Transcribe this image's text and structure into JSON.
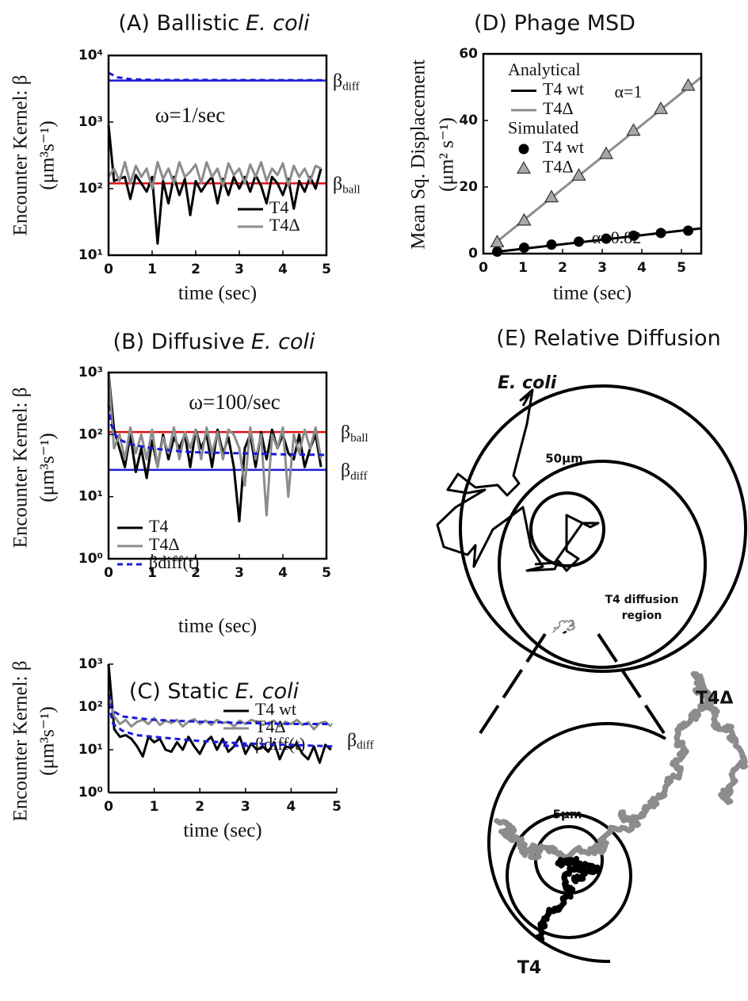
{
  "chart_data": [
    {
      "type": "line",
      "title": [
        "(A) Ballistic",
        "E. coli"
      ],
      "xlabel": "time (sec)",
      "ylabel": [
        "Encounter Kernel: β",
        "(μm³s⁻¹)"
      ],
      "log_y": true,
      "xlim": [
        0,
        5
      ],
      "xticks": [
        0,
        1,
        2,
        3,
        4,
        5
      ],
      "ylim": [
        10,
        10000
      ],
      "yticks": [
        {
          "value": 10,
          "label": "10¹"
        },
        {
          "value": 100,
          "label": "10²"
        },
        {
          "value": 1000,
          "label": "10³"
        },
        {
          "value": 10000,
          "label": "10⁴"
        }
      ],
      "annotations": [
        "ω=1/sec"
      ],
      "x": [
        0,
        0.125,
        0.25,
        0.375,
        0.5,
        0.625,
        0.75,
        0.875,
        1,
        1.125,
        1.25,
        1.375,
        1.5,
        1.625,
        1.75,
        1.875,
        2,
        2.125,
        2.25,
        2.375,
        2.5,
        2.625,
        2.75,
        2.875,
        3,
        3.125,
        3.25,
        3.375,
        3.5,
        3.625,
        3.75,
        3.875,
        4,
        4.125,
        4.25,
        4.375,
        4.5,
        4.625,
        4.75,
        4.875
      ],
      "series": [
        {
          "name": "T4",
          "color": "#000000",
          "values": [
            900,
            130,
            140,
            150,
            70,
            160,
            120,
            90,
            150,
            15,
            130,
            60,
            150,
            80,
            140,
            40,
            130,
            90,
            120,
            150,
            60,
            140,
            80,
            150,
            100,
            150,
            90,
            160,
            110,
            60,
            150,
            120,
            80,
            140,
            50,
            130,
            90,
            150,
            100,
            200
          ]
        },
        {
          "name": "T4Δ",
          "color": "#8c8c8c",
          "values": [
            150,
            200,
            130,
            250,
            120,
            220,
            150,
            200,
            100,
            250,
            140,
            200,
            120,
            250,
            150,
            180,
            230,
            120,
            250,
            150,
            200,
            110,
            240,
            160,
            200,
            120,
            230,
            150,
            250,
            130,
            200,
            160,
            240,
            110,
            220,
            150,
            200,
            130,
            220,
            200
          ]
        },
        {
          "color": "#1a1adc",
          "dash": true,
          "x": [
            0,
            0.2,
            0.5,
            1,
            5
          ],
          "values": [
            5500,
            4700,
            4400,
            4300,
            4250
          ]
        }
      ],
      "ref_lines": [
        {
          "value": 4200,
          "color": "#1a1adc",
          "label": "β",
          "sub": "diff"
        },
        {
          "value": 120,
          "color": "#e01010",
          "label": "β",
          "sub": "ball"
        }
      ]
    },
    {
      "type": "line",
      "title": [
        "(B) Diffusive",
        "E. coli"
      ],
      "xlabel": "time (sec)",
      "ylabel": [
        "Encounter Kernel: β",
        "(μm³s⁻¹)"
      ],
      "log_y": true,
      "xlim": [
        0,
        5
      ],
      "xticks": [
        0,
        1,
        2,
        3,
        4,
        5
      ],
      "ylim": [
        1,
        1000
      ],
      "yticks": [
        {
          "value": 1,
          "label": "10⁰"
        },
        {
          "value": 10,
          "label": "10¹"
        },
        {
          "value": 100,
          "label": "10²"
        },
        {
          "value": 1000,
          "label": "10³"
        }
      ],
      "annotations": [
        "ω=100/sec"
      ],
      "x": [
        0,
        0.125,
        0.25,
        0.375,
        0.5,
        0.625,
        0.75,
        0.875,
        1,
        1.125,
        1.25,
        1.375,
        1.5,
        1.625,
        1.75,
        1.875,
        2,
        2.125,
        2.25,
        2.375,
        2.5,
        2.625,
        2.75,
        2.875,
        3,
        3.125,
        3.25,
        3.375,
        3.5,
        3.625,
        3.75,
        3.875,
        4,
        4.125,
        4.25,
        4.375,
        4.5,
        4.625,
        4.75,
        4.875
      ],
      "series": [
        {
          "name": "T4",
          "color": "#000000",
          "values": [
            1000,
            120,
            60,
            30,
            100,
            25,
            60,
            20,
            80,
            30,
            100,
            40,
            90,
            60,
            100,
            30,
            120,
            60,
            100,
            30,
            120,
            50,
            90,
            30,
            4,
            60,
            100,
            30,
            110,
            40,
            120,
            60,
            100,
            50,
            40,
            100,
            30,
            60,
            100,
            30
          ]
        },
        {
          "name": "T4Δ",
          "color": "#8c8c8c",
          "values": [
            1000,
            60,
            100,
            40,
            130,
            50,
            100,
            40,
            120,
            30,
            90,
            50,
            130,
            40,
            110,
            60,
            120,
            40,
            130,
            50,
            110,
            40,
            120,
            100,
            60,
            15,
            130,
            40,
            100,
            5,
            100,
            60,
            130,
            10,
            100,
            50,
            120,
            60,
            130,
            40
          ]
        },
        {
          "name": "βdiff(t)",
          "color": "#1a1adc",
          "dash": true,
          "x": [
            0,
            0.05,
            0.15,
            0.3,
            0.5,
            1,
            1.5,
            2,
            3,
            4,
            5
          ],
          "values": [
            300,
            150,
            100,
            80,
            70,
            60,
            55,
            52,
            50,
            48,
            47
          ]
        }
      ],
      "ref_lines": [
        {
          "value": 110,
          "color": "#e01010",
          "label": "β",
          "sub": "ball"
        },
        {
          "value": 27,
          "color": "#1a1adc",
          "label": "β",
          "sub": "diff"
        }
      ]
    },
    {
      "type": "line",
      "title": [
        "(C) Static",
        "E. coli"
      ],
      "xlabel": "time (sec)",
      "ylabel": [
        "Encounter Kernel: β",
        "(μm³s⁻¹)"
      ],
      "log_y": true,
      "xlim": [
        0,
        5
      ],
      "xticks": [
        0,
        1,
        2,
        3,
        4,
        5
      ],
      "ylim": [
        1,
        1000
      ],
      "yticks": [
        {
          "value": 1,
          "label": "10⁰"
        },
        {
          "value": 10,
          "label": "10¹"
        },
        {
          "value": 100,
          "label": "10²"
        },
        {
          "value": 1000,
          "label": "10³"
        }
      ],
      "x": [
        0,
        0.125,
        0.25,
        0.375,
        0.5,
        0.625,
        0.75,
        0.875,
        1,
        1.125,
        1.25,
        1.375,
        1.5,
        1.625,
        1.75,
        1.875,
        2,
        2.125,
        2.25,
        2.375,
        2.5,
        2.625,
        2.75,
        2.875,
        3,
        3.125,
        3.25,
        3.375,
        3.5,
        3.625,
        3.75,
        3.875,
        4,
        4.125,
        4.25,
        4.375,
        4.5,
        4.625,
        4.75,
        4.875
      ],
      "series": [
        {
          "name": "T4 wt",
          "color": "#000000",
          "values": [
            1000,
            30,
            20,
            22,
            18,
            12,
            7,
            20,
            15,
            18,
            10,
            9,
            15,
            10,
            20,
            12,
            8,
            15,
            20,
            10,
            18,
            9,
            12,
            20,
            8,
            14,
            10,
            12,
            9,
            15,
            6,
            12,
            11,
            14,
            8,
            6,
            12,
            5,
            13,
            10
          ]
        },
        {
          "name": "T4Δ",
          "color": "#8c8c8c",
          "values": [
            200,
            60,
            40,
            50,
            35,
            45,
            50,
            40,
            55,
            38,
            48,
            42,
            50,
            35,
            45,
            52,
            40,
            48,
            38,
            50,
            42,
            45,
            35,
            48,
            40,
            50,
            45,
            38,
            42,
            48,
            35,
            45,
            40,
            50,
            38,
            44,
            30,
            42,
            45,
            35
          ]
        },
        {
          "name": "βdiff(t)",
          "color": "#1a1adc",
          "dash": true,
          "x": [
            0,
            0.1,
            0.3,
            0.6,
            1,
            2,
            3,
            4,
            4.9
          ],
          "values": [
            200,
            80,
            60,
            55,
            50,
            45,
            42,
            40,
            40
          ]
        },
        {
          "color": "#1a1adc",
          "dash": true,
          "x": [
            0,
            0.1,
            0.3,
            0.6,
            1,
            2,
            3,
            4,
            4.9
          ],
          "values": [
            120,
            40,
            28,
            22,
            20,
            16,
            14,
            13,
            12
          ],
          "end_label": "β",
          "end_label_sub": "diff"
        }
      ]
    },
    {
      "type": "line",
      "title": [
        "(D) Phage MSD"
      ],
      "xlabel": "time (sec)",
      "ylabel": [
        "Mean Sq. Displacement",
        "(μm² s⁻¹)"
      ],
      "xlim": [
        0,
        5.5
      ],
      "xticks": [
        0,
        1,
        2,
        3,
        4,
        5
      ],
      "ylim": [
        0,
        60
      ],
      "yticks": [
        0,
        20,
        40,
        60
      ],
      "annotations": [
        "α=1",
        "α=0.82"
      ],
      "legend_headers": [
        "Analytical",
        "Simulated"
      ],
      "series": [
        {
          "name": "T4 wt",
          "group": 0,
          "color": "#000000",
          "x": [
            0.3,
            5.5
          ],
          "values": [
            0.5,
            7.6
          ]
        },
        {
          "name": "T4Δ",
          "group": 0,
          "color": "#8c8c8c",
          "x": [
            0.3,
            5.5
          ],
          "values": [
            3.2,
            53
          ]
        },
        {
          "name": "T4 wt",
          "group": 1,
          "color": "#000000",
          "linestyle": "none",
          "marker": "circle",
          "x": [
            0.35,
            1.03,
            1.72,
            2.41,
            3.1,
            3.79,
            4.48,
            5.17
          ],
          "values": [
            0.6,
            1.8,
            2.7,
            3.6,
            4.5,
            5.4,
            6.2,
            6.9
          ]
        },
        {
          "name": "T4Δ",
          "group": 1,
          "color": "#a8a8a8",
          "linestyle": "none",
          "marker": "triangle",
          "x": [
            0.35,
            1.03,
            1.72,
            2.41,
            3.1,
            3.79,
            4.48,
            5.17
          ],
          "values": [
            3.5,
            10,
            17,
            23.5,
            30,
            37,
            43.5,
            50.5
          ]
        }
      ]
    }
  ],
  "diagram": {
    "title": "(E) Relative Diffusion",
    "organism": "E. coli",
    "outer_scale": "50μm",
    "region": [
      "T4 diffusion",
      "region"
    ],
    "mutant": "T4Δ",
    "inner_scale": "5μm",
    "wildtype": "T4"
  }
}
